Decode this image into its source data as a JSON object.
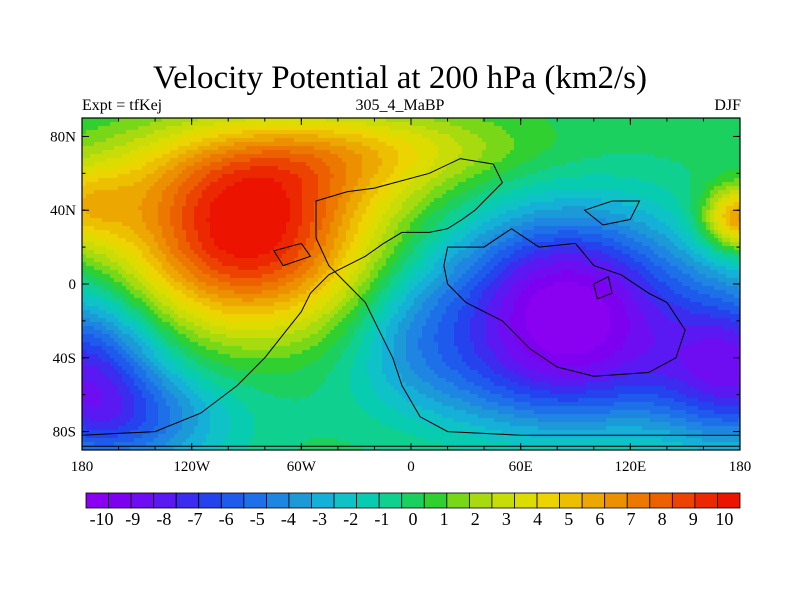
{
  "header": {
    "title": "Velocity Potential at 200 hPa (km2/s)",
    "left_label": "Expt = tfKej",
    "center_label": "305_4_MaBP",
    "right_label": "DJF"
  },
  "axes": {
    "x_ticks": [
      {
        "value": -180,
        "label": "180"
      },
      {
        "value": -120,
        "label": "120W"
      },
      {
        "value": -60,
        "label": "60W"
      },
      {
        "value": 0,
        "label": "0"
      },
      {
        "value": 60,
        "label": "60E"
      },
      {
        "value": 120,
        "label": "120E"
      },
      {
        "value": 180,
        "label": "180"
      }
    ],
    "y_ticks": [
      {
        "value": 80,
        "label": "80N"
      },
      {
        "value": 40,
        "label": "40N"
      },
      {
        "value": 0,
        "label": "0"
      },
      {
        "value": -40,
        "label": "40S"
      },
      {
        "value": -80,
        "label": "80S"
      }
    ],
    "lon_range": [
      -180,
      180
    ],
    "lat_range": [
      -90,
      90
    ]
  },
  "colorbar": {
    "labels": [
      "-10",
      "-9",
      "-8",
      "-7",
      "-6",
      "-5",
      "-4",
      "-3",
      "-2",
      "-1",
      "0",
      "1",
      "2",
      "3",
      "4",
      "5",
      "6",
      "7",
      "8",
      "9",
      "10"
    ],
    "colors": [
      "#8a00f0",
      "#7e00f0",
      "#6e0cf2",
      "#5a18f2",
      "#3c2cf0",
      "#2442ee",
      "#1e5aec",
      "#1e70e8",
      "#1e86e2",
      "#1c9ad8",
      "#14b0d8",
      "#0ec2c8",
      "#08ccb0",
      "#10d090",
      "#1cd060",
      "#30d030",
      "#78d818",
      "#a8da10",
      "#c8dc08",
      "#dcdc00",
      "#ecd400",
      "#ecc000",
      "#eca800",
      "#ec9000",
      "#ec7800",
      "#ec6000",
      "#ec4400",
      "#ec2800",
      "#ec1400"
    ]
  },
  "map": {
    "field": "velocity potential",
    "units": "km2/s",
    "level": "200 hPa",
    "features": [
      {
        "type": "max",
        "lon": -90,
        "lat": 25,
        "value": 10.2
      },
      {
        "type": "min",
        "lon": 85,
        "lat": -10,
        "value": -10.3
      },
      {
        "type": "local_max",
        "lon": -180,
        "lat": 42,
        "value": 3.5
      },
      {
        "type": "local_max",
        "lon": 180,
        "lat": 35,
        "value": 7.5
      }
    ],
    "coastline_color": "#000000"
  }
}
